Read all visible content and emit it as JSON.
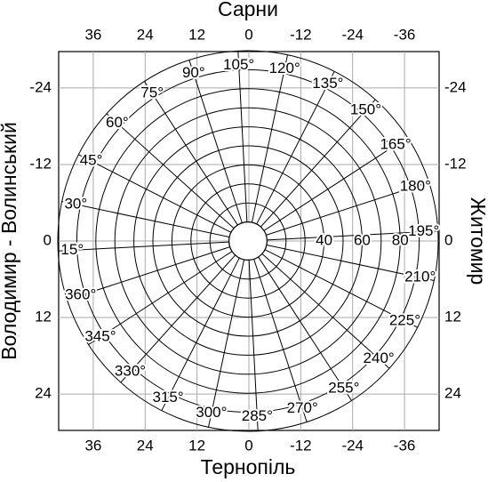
{
  "chart_data": {
    "type": "polar",
    "top_label": "Сарни",
    "bottom_label": "Тернопіль",
    "left_label": "Володимир - Волинський",
    "right_label": "Житомир",
    "xlim": [
      44,
      -44
    ],
    "ylim": [
      -29.7,
      29.7
    ],
    "xticks": [
      36,
      24,
      12,
      0,
      -12,
      -24,
      -36
    ],
    "yticks": [
      -24,
      -12,
      0,
      12,
      24
    ],
    "rlim": [
      0,
      100
    ],
    "rgrid": [
      10,
      20,
      30,
      40,
      50,
      60,
      70,
      80,
      90,
      100
    ],
    "rticks": [
      40,
      60,
      80
    ],
    "angle_ticks": [
      {
        "value": 15,
        "label": "15°"
      },
      {
        "value": 30,
        "label": "30°"
      },
      {
        "value": 45,
        "label": "45°"
      },
      {
        "value": 60,
        "label": "60°"
      },
      {
        "value": 75,
        "label": "75°"
      },
      {
        "value": 90,
        "label": "90°"
      },
      {
        "value": 105,
        "label": "105°"
      },
      {
        "value": 120,
        "label": "120°"
      },
      {
        "value": 135,
        "label": "135°"
      },
      {
        "value": 150,
        "label": "150°"
      },
      {
        "value": 165,
        "label": "165°"
      },
      {
        "value": 180,
        "label": "180°"
      },
      {
        "value": 195,
        "label": "195°"
      },
      {
        "value": 210,
        "label": "210°"
      },
      {
        "value": 225,
        "label": "225°"
      },
      {
        "value": 240,
        "label": "240°"
      },
      {
        "value": 255,
        "label": "255°"
      },
      {
        "value": 270,
        "label": "270°"
      },
      {
        "value": 285,
        "label": "285°"
      },
      {
        "value": 300,
        "label": "300°"
      },
      {
        "value": 315,
        "label": "315°"
      },
      {
        "value": 330,
        "label": "330°"
      },
      {
        "value": 345,
        "label": "345°"
      },
      {
        "value": 360,
        "label": "360°"
      }
    ],
    "grid": true
  }
}
